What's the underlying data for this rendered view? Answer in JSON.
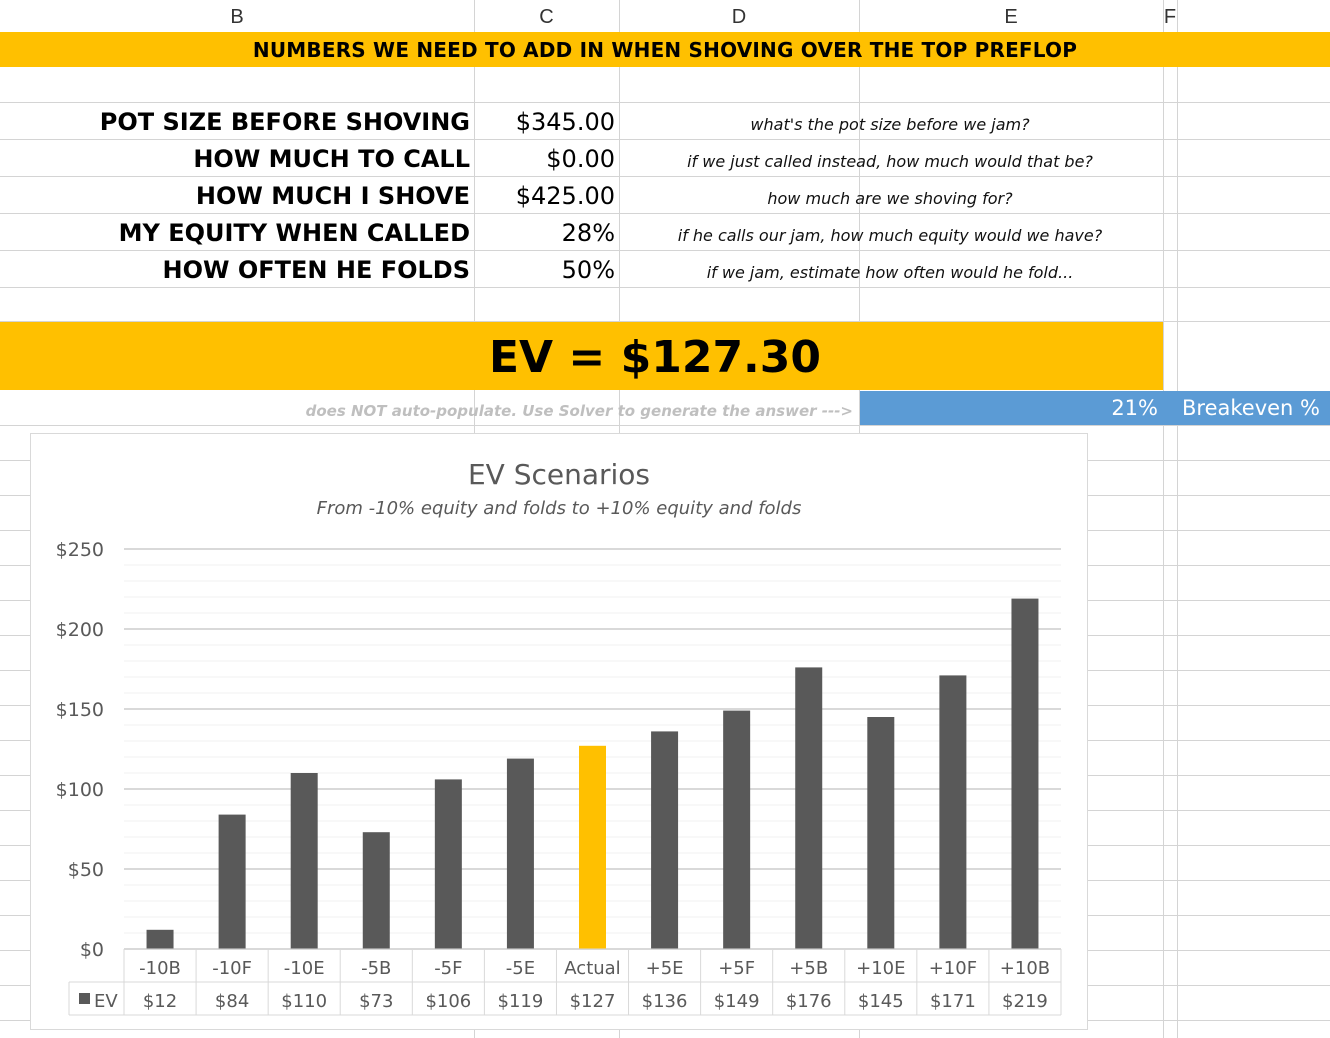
{
  "columns": [
    "B",
    "C",
    "D",
    "E",
    "F"
  ],
  "banner": "NUMBERS WE NEED TO ADD IN WHEN SHOVING OVER THE TOP PREFLOP",
  "inputs": [
    {
      "label": "POT SIZE BEFORE SHOVING",
      "value": "$345.00",
      "note": "what's the pot size before we jam?"
    },
    {
      "label": "HOW MUCH TO CALL",
      "value": "$0.00",
      "note": "if we just called instead, how much would that be?"
    },
    {
      "label": "HOW MUCH I SHOVE",
      "value": "$425.00",
      "note": "how much are we shoving for?"
    },
    {
      "label": "MY EQUITY WHEN CALLED",
      "value": "28%",
      "note": "if he calls our jam, how much equity would we have?"
    },
    {
      "label": "HOW OFTEN HE FOLDS",
      "value": "50%",
      "note": "if we jam, estimate how often would he fold..."
    }
  ],
  "ev": "EV =  $127.30",
  "solver_note": "does NOT auto-populate. Use Solver to generate the answer --->",
  "breakeven": {
    "pct": "21%",
    "label": "Breakeven %"
  },
  "colors": {
    "accent": "#ffc000",
    "bar": "#595959",
    "highlight": "#ffc000",
    "breakeven": "#5b9bd5"
  },
  "chart_data": {
    "type": "bar",
    "title": "EV Scenarios",
    "subtitle": "From -10% equity and folds to +10% equity and folds",
    "categories": [
      "-10B",
      "-10F",
      "-10E",
      "-5B",
      "-5F",
      "-5E",
      "Actual",
      "+5E",
      "+5F",
      "+5B",
      "+10E",
      "+10F",
      "+10B"
    ],
    "series": [
      {
        "name": "EV",
        "values": [
          12,
          84,
          110,
          73,
          106,
          119,
          127,
          136,
          149,
          176,
          145,
          171,
          219
        ]
      }
    ],
    "data_table": [
      "$12",
      "$84",
      "$110",
      "$73",
      "$106",
      "$119",
      "$127",
      "$136",
      "$149",
      "$176",
      "$145",
      "$171",
      "$219"
    ],
    "highlight_category": "Actual",
    "ylim": [
      0,
      250
    ],
    "yticks": [
      "$0",
      "$50",
      "$100",
      "$150",
      "$200",
      "$250"
    ],
    "xlabel": "",
    "ylabel": "",
    "grid": true,
    "legend": "data table"
  }
}
